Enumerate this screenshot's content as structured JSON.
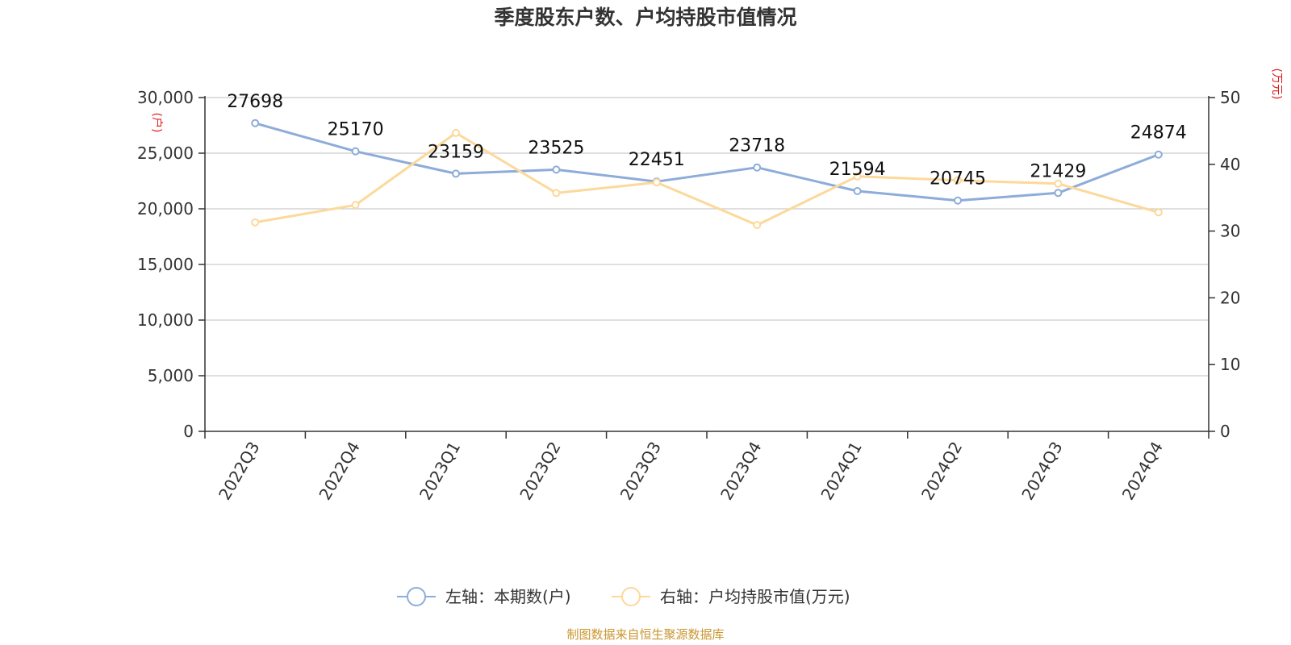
{
  "chart_data": {
    "type": "line",
    "title": "季度股东户数、户均持股市值情况",
    "categories": [
      "2022Q3",
      "2022Q4",
      "2023Q1",
      "2023Q2",
      "2023Q3",
      "2023Q4",
      "2024Q1",
      "2024Q2",
      "2024Q3",
      "2024Q4"
    ],
    "series": [
      {
        "name": "左轴：本期数(户)",
        "axis": "left",
        "color": "#8eacd9",
        "values": [
          27698,
          25170,
          23159,
          23525,
          22451,
          23718,
          21594,
          20745,
          21429,
          24874
        ],
        "labels": [
          "27698",
          "25170",
          "23159",
          "23525",
          "22451",
          "23718",
          "21594",
          "20745",
          "21429",
          "24874"
        ]
      },
      {
        "name": "右轴：户均持股市值(万元)",
        "axis": "right",
        "color": "#fcd99a",
        "values": [
          31.3,
          33.9,
          44.7,
          35.7,
          37.3,
          30.9,
          38.2,
          37.6,
          37.1,
          32.8
        ]
      }
    ],
    "left_axis": {
      "unit": "(户)",
      "ylim": [
        0,
        30000
      ],
      "ticks": [
        0,
        5000,
        10000,
        15000,
        20000,
        25000,
        30000
      ],
      "tick_labels": [
        "0",
        "5,000",
        "10,000",
        "15,000",
        "20,000",
        "25,000",
        "30,000"
      ]
    },
    "right_axis": {
      "unit": "(万元)",
      "ylim": [
        0,
        50
      ],
      "ticks": [
        0,
        10,
        20,
        30,
        40,
        50
      ],
      "tick_labels": [
        "0",
        "10",
        "20",
        "30",
        "40",
        "50"
      ]
    },
    "grid": true,
    "legend": "bottom-center",
    "source": "制图数据来自恒生聚源数据库"
  }
}
